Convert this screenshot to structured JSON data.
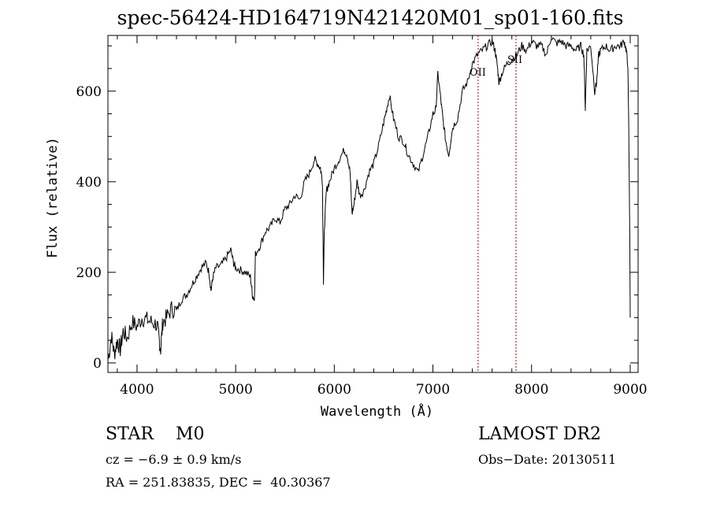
{
  "chart_data": {
    "type": "line",
    "title": "spec-56424-HD164719N421420M01_sp01-160.fits",
    "xlabel": "Wavelength (Å)",
    "ylabel": "Flux (relative)",
    "xlim": [
      3705,
      9080
    ],
    "ylim": [
      -21,
      723
    ],
    "xticks": [
      4000,
      5000,
      6000,
      7000,
      8000,
      9000
    ],
    "yticks": [
      0,
      200,
      400,
      600
    ],
    "grid": false,
    "lines": [
      {
        "label": "OII",
        "wavelength": 7458
      },
      {
        "label": "SII",
        "wavelength": 7842
      }
    ],
    "series": [
      {
        "name": "spectrum",
        "x": [
          3710,
          3740,
          3770,
          3800,
          3830,
          3860,
          3900,
          3950,
          4000,
          4050,
          4100,
          4150,
          4200,
          4220,
          4240,
          4260,
          4300,
          4350,
          4400,
          4450,
          4500,
          4550,
          4600,
          4650,
          4700,
          4730,
          4750,
          4770,
          4800,
          4850,
          4900,
          4950,
          4980,
          5000,
          5050,
          5100,
          5150,
          5170,
          5190,
          5200,
          5250,
          5300,
          5350,
          5400,
          5450,
          5500,
          5550,
          5600,
          5650,
          5700,
          5750,
          5800,
          5830,
          5860,
          5880,
          5890,
          5900,
          5920,
          5950,
          6000,
          6050,
          6100,
          6130,
          6160,
          6180,
          6200,
          6230,
          6260,
          6300,
          6350,
          6400,
          6450,
          6500,
          6530,
          6560,
          6600,
          6650,
          6700,
          6750,
          6800,
          6850,
          6900,
          6950,
          7000,
          7030,
          7050,
          7080,
          7100,
          7130,
          7160,
          7200,
          7250,
          7300,
          7350,
          7400,
          7450,
          7500,
          7550,
          7600,
          7630,
          7650,
          7670,
          7700,
          7750,
          7800,
          7850,
          7900,
          7950,
          8000,
          8050,
          8100,
          8150,
          8200,
          8250,
          8300,
          8350,
          8400,
          8450,
          8500,
          8530,
          8545,
          8560,
          8600,
          8640,
          8660,
          8680,
          8700,
          8750,
          8800,
          8850,
          8900,
          8940,
          8960,
          8975,
          8985,
          8995,
          9000
        ],
        "y": [
          10,
          60,
          20,
          50,
          30,
          70,
          55,
          90,
          80,
          100,
          95,
          90,
          85,
          60,
          30,
          90,
          100,
          120,
          115,
          140,
          150,
          170,
          190,
          210,
          220,
          200,
          160,
          190,
          210,
          215,
          230,
          250,
          220,
          210,
          205,
          200,
          190,
          150,
          140,
          240,
          260,
          290,
          300,
          320,
          310,
          340,
          350,
          370,
          360,
          400,
          420,
          450,
          440,
          430,
          400,
          180,
          300,
          380,
          400,
          430,
          450,
          470,
          460,
          420,
          330,
          350,
          400,
          370,
          380,
          420,
          440,
          480,
          530,
          560,
          590,
          540,
          500,
          490,
          460,
          440,
          420,
          460,
          500,
          550,
          560,
          640,
          580,
          540,
          490,
          460,
          520,
          540,
          600,
          620,
          660,
          680,
          690,
          700,
          710,
          690,
          660,
          620,
          640,
          660,
          670,
          680,
          700,
          690,
          710,
          700,
          700,
          680,
          720,
          705,
          710,
          700,
          700,
          690,
          700,
          680,
          560,
          690,
          700,
          600,
          620,
          680,
          690,
          700,
          690,
          700,
          700,
          710,
          690,
          660,
          530,
          300,
          100
        ]
      }
    ]
  },
  "footer": {
    "object": "STAR    M0",
    "survey": "LAMOST DR2",
    "cz": "cz = −6.9 ± 0.9 km/s",
    "obs_date": "Obs−Date: 20130511",
    "coords": "RA = 251.83835, DEC =  40.30367"
  }
}
